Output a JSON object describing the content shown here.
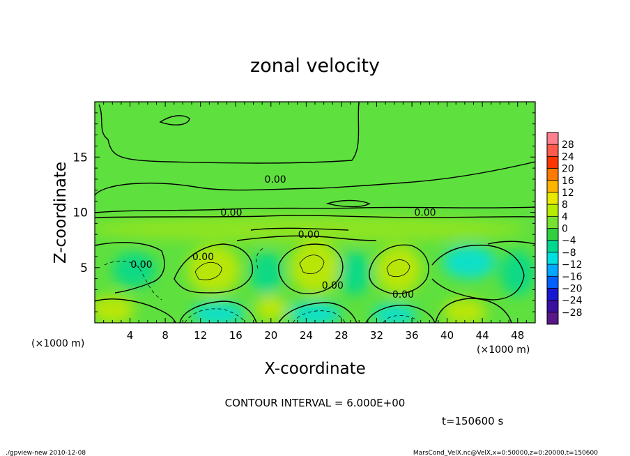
{
  "chart_data": {
    "type": "heatmap",
    "title": "zonal velocity",
    "xlabel": "X-coordinate",
    "ylabel": "Z-coordinate",
    "x_unit_left": "(×1000 m)",
    "x_unit_right": "(×1000 m)",
    "xlim": [
      0,
      50
    ],
    "ylim": [
      0,
      20
    ],
    "x_ticks": [
      4,
      8,
      12,
      16,
      20,
      24,
      28,
      32,
      36,
      40,
      44,
      48
    ],
    "y_ticks": [
      5,
      10,
      15
    ],
    "colorbar": {
      "levels": [
        28,
        24,
        20,
        16,
        12,
        8,
        4,
        0,
        -4,
        -8,
        -12,
        -16,
        -20,
        -24,
        -28
      ],
      "labels": [
        "28",
        "24",
        "20",
        "16",
        "12",
        "8",
        "4",
        "0",
        "−4",
        "−8",
        "−12",
        "−16",
        "−20",
        "−24",
        "−28"
      ],
      "colors": [
        "#ff7f8f",
        "#ff5a4a",
        "#ff3500",
        "#ff7a00",
        "#ffb400",
        "#e8e800",
        "#b8ec00",
        "#78e030",
        "#30d040",
        "#00d890",
        "#00e0e0",
        "#00a8ff",
        "#0060ff",
        "#1818d0",
        "#3a10a0",
        "#581888"
      ]
    },
    "contour_labels": [
      {
        "x": 20.5,
        "y": 13.0,
        "text": "0.00"
      },
      {
        "x": 15.5,
        "y": 10.0,
        "text": "0.00"
      },
      {
        "x": 37.5,
        "y": 10.0,
        "text": "0.00"
      },
      {
        "x": 24.3,
        "y": 8.0,
        "text": "0.00"
      },
      {
        "x": 12.3,
        "y": 6.0,
        "text": "0.00"
      },
      {
        "x": 5.3,
        "y": 5.3,
        "text": "0.00"
      },
      {
        "x": 27.0,
        "y": 3.4,
        "text": "0.00"
      },
      {
        "x": 35.0,
        "y": 2.6,
        "text": "0.00"
      }
    ],
    "field_blobs": [
      {
        "x": 13.5,
        "y": 4.8,
        "rx": 3.0,
        "ry": 2.2,
        "value": 8
      },
      {
        "x": 25.0,
        "y": 5.0,
        "rx": 2.8,
        "ry": 2.4,
        "value": 8
      },
      {
        "x": 34.5,
        "y": 4.8,
        "rx": 2.6,
        "ry": 2.2,
        "value": 8
      },
      {
        "x": 20.0,
        "y": 1.3,
        "rx": 1.8,
        "ry": 1.2,
        "value": 6
      },
      {
        "x": 2.0,
        "y": 1.2,
        "rx": 2.5,
        "ry": 1.3,
        "value": 6
      },
      {
        "x": 42.0,
        "y": 1.0,
        "rx": 2.5,
        "ry": 1.2,
        "value": 6
      },
      {
        "x": 4.5,
        "y": 4.8,
        "rx": 2.5,
        "ry": 1.6,
        "value": -8
      },
      {
        "x": 14.0,
        "y": 0.8,
        "rx": 3.0,
        "ry": 1.1,
        "value": -10
      },
      {
        "x": 25.0,
        "y": 0.8,
        "rx": 3.0,
        "ry": 1.1,
        "value": -10
      },
      {
        "x": 34.0,
        "y": 0.7,
        "rx": 2.5,
        "ry": 1.0,
        "value": -12
      },
      {
        "x": 42.5,
        "y": 5.5,
        "rx": 3.0,
        "ry": 1.5,
        "value": -10
      },
      {
        "x": 29.5,
        "y": 4.5,
        "rx": 1.8,
        "ry": 2.0,
        "value": -6
      },
      {
        "x": 19.5,
        "y": 4.5,
        "rx": 1.8,
        "ry": 2.0,
        "value": -6
      },
      {
        "x": 48.0,
        "y": 4.5,
        "rx": 2.0,
        "ry": 2.0,
        "value": -6
      },
      {
        "x": 24.0,
        "y": 8.5,
        "rx": 25.0,
        "ry": 1.2,
        "value": 2
      }
    ]
  },
  "contour_interval": "CONTOUR INTERVAL = 6.000E+00",
  "time_label": "t=150600 s",
  "footer_left": "./gpview-new  2010-12-08",
  "footer_right": "MarsCond_VelX.nc@VelX,x=0:50000,z=0:20000,t=150600"
}
